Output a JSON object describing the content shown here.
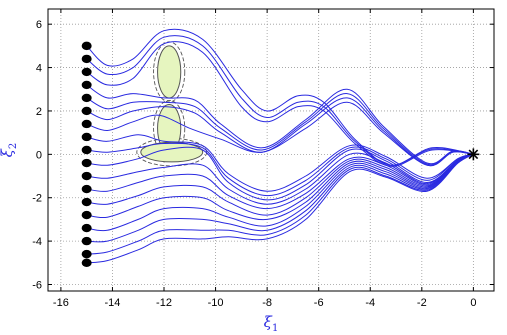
{
  "chart_data": {
    "type": "line",
    "title": "",
    "xlabel": "ξ",
    "xlabel_sub": "1",
    "ylabel": "ξ",
    "ylabel_sub": "2",
    "xlim": [
      -16.5,
      0.8
    ],
    "ylim": [
      -6.3,
      6.7
    ],
    "xticks": [
      -16,
      -14,
      -12,
      -10,
      -8,
      -6,
      -4,
      -2,
      0
    ],
    "yticks": [
      -6,
      -4,
      -2,
      0,
      2,
      4,
      6
    ],
    "grid": true,
    "grid_style": "dotted",
    "colors": {
      "trajectory": "#2a2ae0",
      "start_marker": "#000000",
      "target_marker": "#000000",
      "obstacle_fill": "#e6f5bf",
      "obstacle_edge": "#555555",
      "axis_label": "#2a2ae0"
    },
    "target": {
      "x": 0,
      "y": 0,
      "marker": "asterisk"
    },
    "start_points": [
      {
        "x": -15,
        "y": 5.0
      },
      {
        "x": -15,
        "y": 4.4
      },
      {
        "x": -15,
        "y": 3.8
      },
      {
        "x": -15,
        "y": 3.2
      },
      {
        "x": -15,
        "y": 2.6
      },
      {
        "x": -15,
        "y": 2.0
      },
      {
        "x": -15,
        "y": 1.4
      },
      {
        "x": -15,
        "y": 0.8
      },
      {
        "x": -15,
        "y": 0.2
      },
      {
        "x": -15,
        "y": -0.4
      },
      {
        "x": -15,
        "y": -1.0
      },
      {
        "x": -15,
        "y": -1.6
      },
      {
        "x": -15,
        "y": -2.2
      },
      {
        "x": -15,
        "y": -2.8
      },
      {
        "x": -15,
        "y": -3.4
      },
      {
        "x": -15,
        "y": -4.0
      },
      {
        "x": -15,
        "y": -4.6
      },
      {
        "x": -15,
        "y": -5.0
      }
    ],
    "obstacles": [
      {
        "cx": -11.8,
        "cy": 3.8,
        "rx": 0.45,
        "ry": 1.2
      },
      {
        "cx": -11.8,
        "cy": 1.2,
        "rx": 0.45,
        "ry": 1.1
      },
      {
        "cx": -11.7,
        "cy": 0.1,
        "rx": 1.2,
        "ry": 0.45
      }
    ],
    "series": [
      {
        "values": [
          [
            -15,
            5.0
          ],
          [
            -14.2,
            4.1
          ],
          [
            -13.2,
            4.4
          ],
          [
            -12.0,
            5.7
          ],
          [
            -10.5,
            5.3
          ],
          [
            -9.0,
            3.0
          ],
          [
            -8.0,
            2.0
          ],
          [
            -6.8,
            2.7
          ],
          [
            -5.8,
            2.4
          ],
          [
            -4.6,
            0.7
          ],
          [
            -3.2,
            -0.5
          ],
          [
            -1.6,
            0.3
          ],
          [
            0,
            0
          ]
        ]
      },
      {
        "values": [
          [
            -15,
            4.4
          ],
          [
            -14.2,
            3.7
          ],
          [
            -13.2,
            4.0
          ],
          [
            -12.0,
            5.4
          ],
          [
            -10.5,
            5.0
          ],
          [
            -9.0,
            2.6
          ],
          [
            -8.0,
            1.7
          ],
          [
            -6.8,
            2.4
          ],
          [
            -5.8,
            2.2
          ],
          [
            -4.6,
            0.6
          ],
          [
            -3.2,
            -0.5
          ],
          [
            -1.6,
            0.25
          ],
          [
            0,
            0
          ]
        ]
      },
      {
        "values": [
          [
            -15,
            3.8
          ],
          [
            -14.2,
            3.2
          ],
          [
            -13.2,
            3.5
          ],
          [
            -12.0,
            5.1
          ],
          [
            -10.5,
            4.7
          ],
          [
            -9.0,
            2.2
          ],
          [
            -8.0,
            1.5
          ],
          [
            -6.8,
            2.2
          ],
          [
            -5.8,
            2.0
          ],
          [
            -4.6,
            0.5
          ],
          [
            -3.2,
            -0.55
          ],
          [
            -1.6,
            0.2
          ],
          [
            0,
            0
          ]
        ]
      },
      {
        "values": [
          [
            -15,
            3.2
          ],
          [
            -14.2,
            2.6
          ],
          [
            -13.2,
            2.8
          ],
          [
            -12.0,
            2.6
          ],
          [
            -10.8,
            2.5
          ],
          [
            -9.8,
            1.4
          ],
          [
            -8.2,
            0.3
          ],
          [
            -6.5,
            1.6
          ],
          [
            -4.9,
            3.0
          ],
          [
            -3.5,
            1.3
          ],
          [
            -1.8,
            -0.4
          ],
          [
            -0.8,
            0.15
          ],
          [
            0,
            0
          ]
        ]
      },
      {
        "values": [
          [
            -15,
            2.6
          ],
          [
            -14.2,
            2.1
          ],
          [
            -13.2,
            2.4
          ],
          [
            -12.0,
            2.4
          ],
          [
            -10.8,
            2.2
          ],
          [
            -9.8,
            1.2
          ],
          [
            -8.2,
            0.2
          ],
          [
            -6.5,
            1.5
          ],
          [
            -4.9,
            2.8
          ],
          [
            -3.5,
            1.2
          ],
          [
            -1.8,
            -0.45
          ],
          [
            -0.8,
            0.15
          ],
          [
            0,
            0
          ]
        ]
      },
      {
        "values": [
          [
            -15,
            2.0
          ],
          [
            -14.2,
            1.6
          ],
          [
            -13.2,
            2.0
          ],
          [
            -12.0,
            2.2
          ],
          [
            -10.8,
            1.9
          ],
          [
            -9.8,
            1.0
          ],
          [
            -8.2,
            0.1
          ],
          [
            -6.5,
            1.4
          ],
          [
            -4.9,
            2.6
          ],
          [
            -3.5,
            1.1
          ],
          [
            -1.8,
            -0.5
          ],
          [
            -0.8,
            0.1
          ],
          [
            0,
            0
          ]
        ]
      },
      {
        "values": [
          [
            -15,
            1.4
          ],
          [
            -14.2,
            1.1
          ],
          [
            -13.2,
            1.5
          ],
          [
            -12.2,
            1.8
          ],
          [
            -11.0,
            1.2
          ],
          [
            -9.8,
            0.7
          ],
          [
            -8.2,
            0.1
          ],
          [
            -6.5,
            1.2
          ],
          [
            -4.9,
            2.4
          ],
          [
            -3.5,
            1.0
          ],
          [
            -1.8,
            -0.5
          ],
          [
            -0.8,
            0.1
          ],
          [
            0,
            0
          ]
        ]
      },
      {
        "values": [
          [
            -15,
            0.8
          ],
          [
            -14.2,
            0.6
          ],
          [
            -13.0,
            0.9
          ],
          [
            -12.0,
            0.6
          ],
          [
            -10.5,
            0.4
          ],
          [
            -9.5,
            -0.9
          ],
          [
            -8.0,
            -1.7
          ],
          [
            -6.5,
            -1.0
          ],
          [
            -4.8,
            0.4
          ],
          [
            -3.4,
            -0.1
          ],
          [
            -1.8,
            -1.1
          ],
          [
            -0.6,
            -0.2
          ],
          [
            0,
            0
          ]
        ]
      },
      {
        "values": [
          [
            -15,
            0.2
          ],
          [
            -14.2,
            0.1
          ],
          [
            -13.0,
            0.3
          ],
          [
            -12.0,
            0.5
          ],
          [
            -10.5,
            0.3
          ],
          [
            -9.5,
            -1.1
          ],
          [
            -8.0,
            -1.9
          ],
          [
            -6.5,
            -1.2
          ],
          [
            -4.8,
            0.3
          ],
          [
            -3.4,
            -0.2
          ],
          [
            -1.8,
            -1.2
          ],
          [
            -0.6,
            -0.2
          ],
          [
            0,
            0
          ]
        ]
      },
      {
        "values": [
          [
            -15,
            -0.4
          ],
          [
            -14.2,
            -0.5
          ],
          [
            -13.0,
            -0.2
          ],
          [
            -12.0,
            0.2
          ],
          [
            -10.5,
            0.2
          ],
          [
            -9.5,
            -1.3
          ],
          [
            -8.0,
            -2.1
          ],
          [
            -6.5,
            -1.4
          ],
          [
            -4.8,
            0.2
          ],
          [
            -3.4,
            -0.3
          ],
          [
            -1.8,
            -1.3
          ],
          [
            -0.6,
            -0.25
          ],
          [
            0,
            0
          ]
        ]
      },
      {
        "values": [
          [
            -15,
            -1.0
          ],
          [
            -14.2,
            -1.1
          ],
          [
            -13.0,
            -0.8
          ],
          [
            -12.0,
            -0.6
          ],
          [
            -10.5,
            -0.5
          ],
          [
            -9.5,
            -1.6
          ],
          [
            -8.0,
            -2.3
          ],
          [
            -6.5,
            -1.6
          ],
          [
            -4.8,
            0.0
          ],
          [
            -3.4,
            -0.4
          ],
          [
            -1.8,
            -1.35
          ],
          [
            -0.6,
            -0.25
          ],
          [
            0,
            0
          ]
        ]
      },
      {
        "values": [
          [
            -15,
            -1.6
          ],
          [
            -14.2,
            -1.7
          ],
          [
            -13.0,
            -1.3
          ],
          [
            -12.0,
            -1.0
          ],
          [
            -10.5,
            -1.0
          ],
          [
            -9.5,
            -1.9
          ],
          [
            -8.0,
            -2.5
          ],
          [
            -6.5,
            -1.8
          ],
          [
            -4.8,
            -0.2
          ],
          [
            -3.4,
            -0.5
          ],
          [
            -1.8,
            -1.4
          ],
          [
            -0.6,
            -0.3
          ],
          [
            0,
            0
          ]
        ]
      },
      {
        "values": [
          [
            -15,
            -2.2
          ],
          [
            -14.2,
            -2.3
          ],
          [
            -13.0,
            -1.9
          ],
          [
            -12.0,
            -1.5
          ],
          [
            -10.5,
            -1.5
          ],
          [
            -9.5,
            -2.2
          ],
          [
            -8.0,
            -2.8
          ],
          [
            -6.5,
            -2.0
          ],
          [
            -4.8,
            -0.3
          ],
          [
            -3.4,
            -0.6
          ],
          [
            -1.8,
            -1.45
          ],
          [
            -0.6,
            -0.3
          ],
          [
            0,
            0
          ]
        ]
      },
      {
        "values": [
          [
            -15,
            -2.8
          ],
          [
            -14.2,
            -2.9
          ],
          [
            -13.0,
            -2.4
          ],
          [
            -12.0,
            -2.0
          ],
          [
            -10.5,
            -2.0
          ],
          [
            -9.5,
            -2.6
          ],
          [
            -8.0,
            -3.0
          ],
          [
            -6.5,
            -2.2
          ],
          [
            -4.8,
            -0.4
          ],
          [
            -3.4,
            -0.7
          ],
          [
            -1.8,
            -1.5
          ],
          [
            -0.6,
            -0.3
          ],
          [
            0,
            0
          ]
        ]
      },
      {
        "values": [
          [
            -15,
            -3.4
          ],
          [
            -14.2,
            -3.5
          ],
          [
            -13.0,
            -3.0
          ],
          [
            -12.0,
            -2.5
          ],
          [
            -10.5,
            -2.5
          ],
          [
            -9.5,
            -2.9
          ],
          [
            -8.0,
            -3.3
          ],
          [
            -6.5,
            -2.4
          ],
          [
            -4.8,
            -0.5
          ],
          [
            -3.4,
            -0.8
          ],
          [
            -1.8,
            -1.55
          ],
          [
            -0.6,
            -0.35
          ],
          [
            0,
            0
          ]
        ]
      },
      {
        "values": [
          [
            -15,
            -4.0
          ],
          [
            -14.2,
            -4.0
          ],
          [
            -13.0,
            -3.5
          ],
          [
            -12.0,
            -3.0
          ],
          [
            -10.5,
            -3.0
          ],
          [
            -9.5,
            -3.2
          ],
          [
            -8.0,
            -3.5
          ],
          [
            -6.5,
            -2.6
          ],
          [
            -4.8,
            -0.6
          ],
          [
            -3.4,
            -0.9
          ],
          [
            -1.8,
            -1.6
          ],
          [
            -0.6,
            -0.35
          ],
          [
            0,
            0
          ]
        ]
      },
      {
        "values": [
          [
            -15,
            -4.6
          ],
          [
            -14.2,
            -4.5
          ],
          [
            -13.0,
            -4.0
          ],
          [
            -12.0,
            -3.5
          ],
          [
            -10.5,
            -3.5
          ],
          [
            -9.5,
            -3.5
          ],
          [
            -8.0,
            -3.7
          ],
          [
            -6.5,
            -2.8
          ],
          [
            -4.8,
            -0.7
          ],
          [
            -3.4,
            -1.0
          ],
          [
            -1.8,
            -1.65
          ],
          [
            -0.6,
            -0.4
          ],
          [
            0,
            0
          ]
        ]
      },
      {
        "values": [
          [
            -15,
            -5.0
          ],
          [
            -14.2,
            -4.9
          ],
          [
            -13.0,
            -4.4
          ],
          [
            -12.0,
            -3.9
          ],
          [
            -10.5,
            -3.9
          ],
          [
            -9.5,
            -3.8
          ],
          [
            -8.0,
            -3.9
          ],
          [
            -6.5,
            -3.0
          ],
          [
            -4.8,
            -0.8
          ],
          [
            -3.4,
            -1.05
          ],
          [
            -1.8,
            -1.7
          ],
          [
            -0.6,
            -0.4
          ],
          [
            0,
            0
          ]
        ]
      }
    ]
  }
}
